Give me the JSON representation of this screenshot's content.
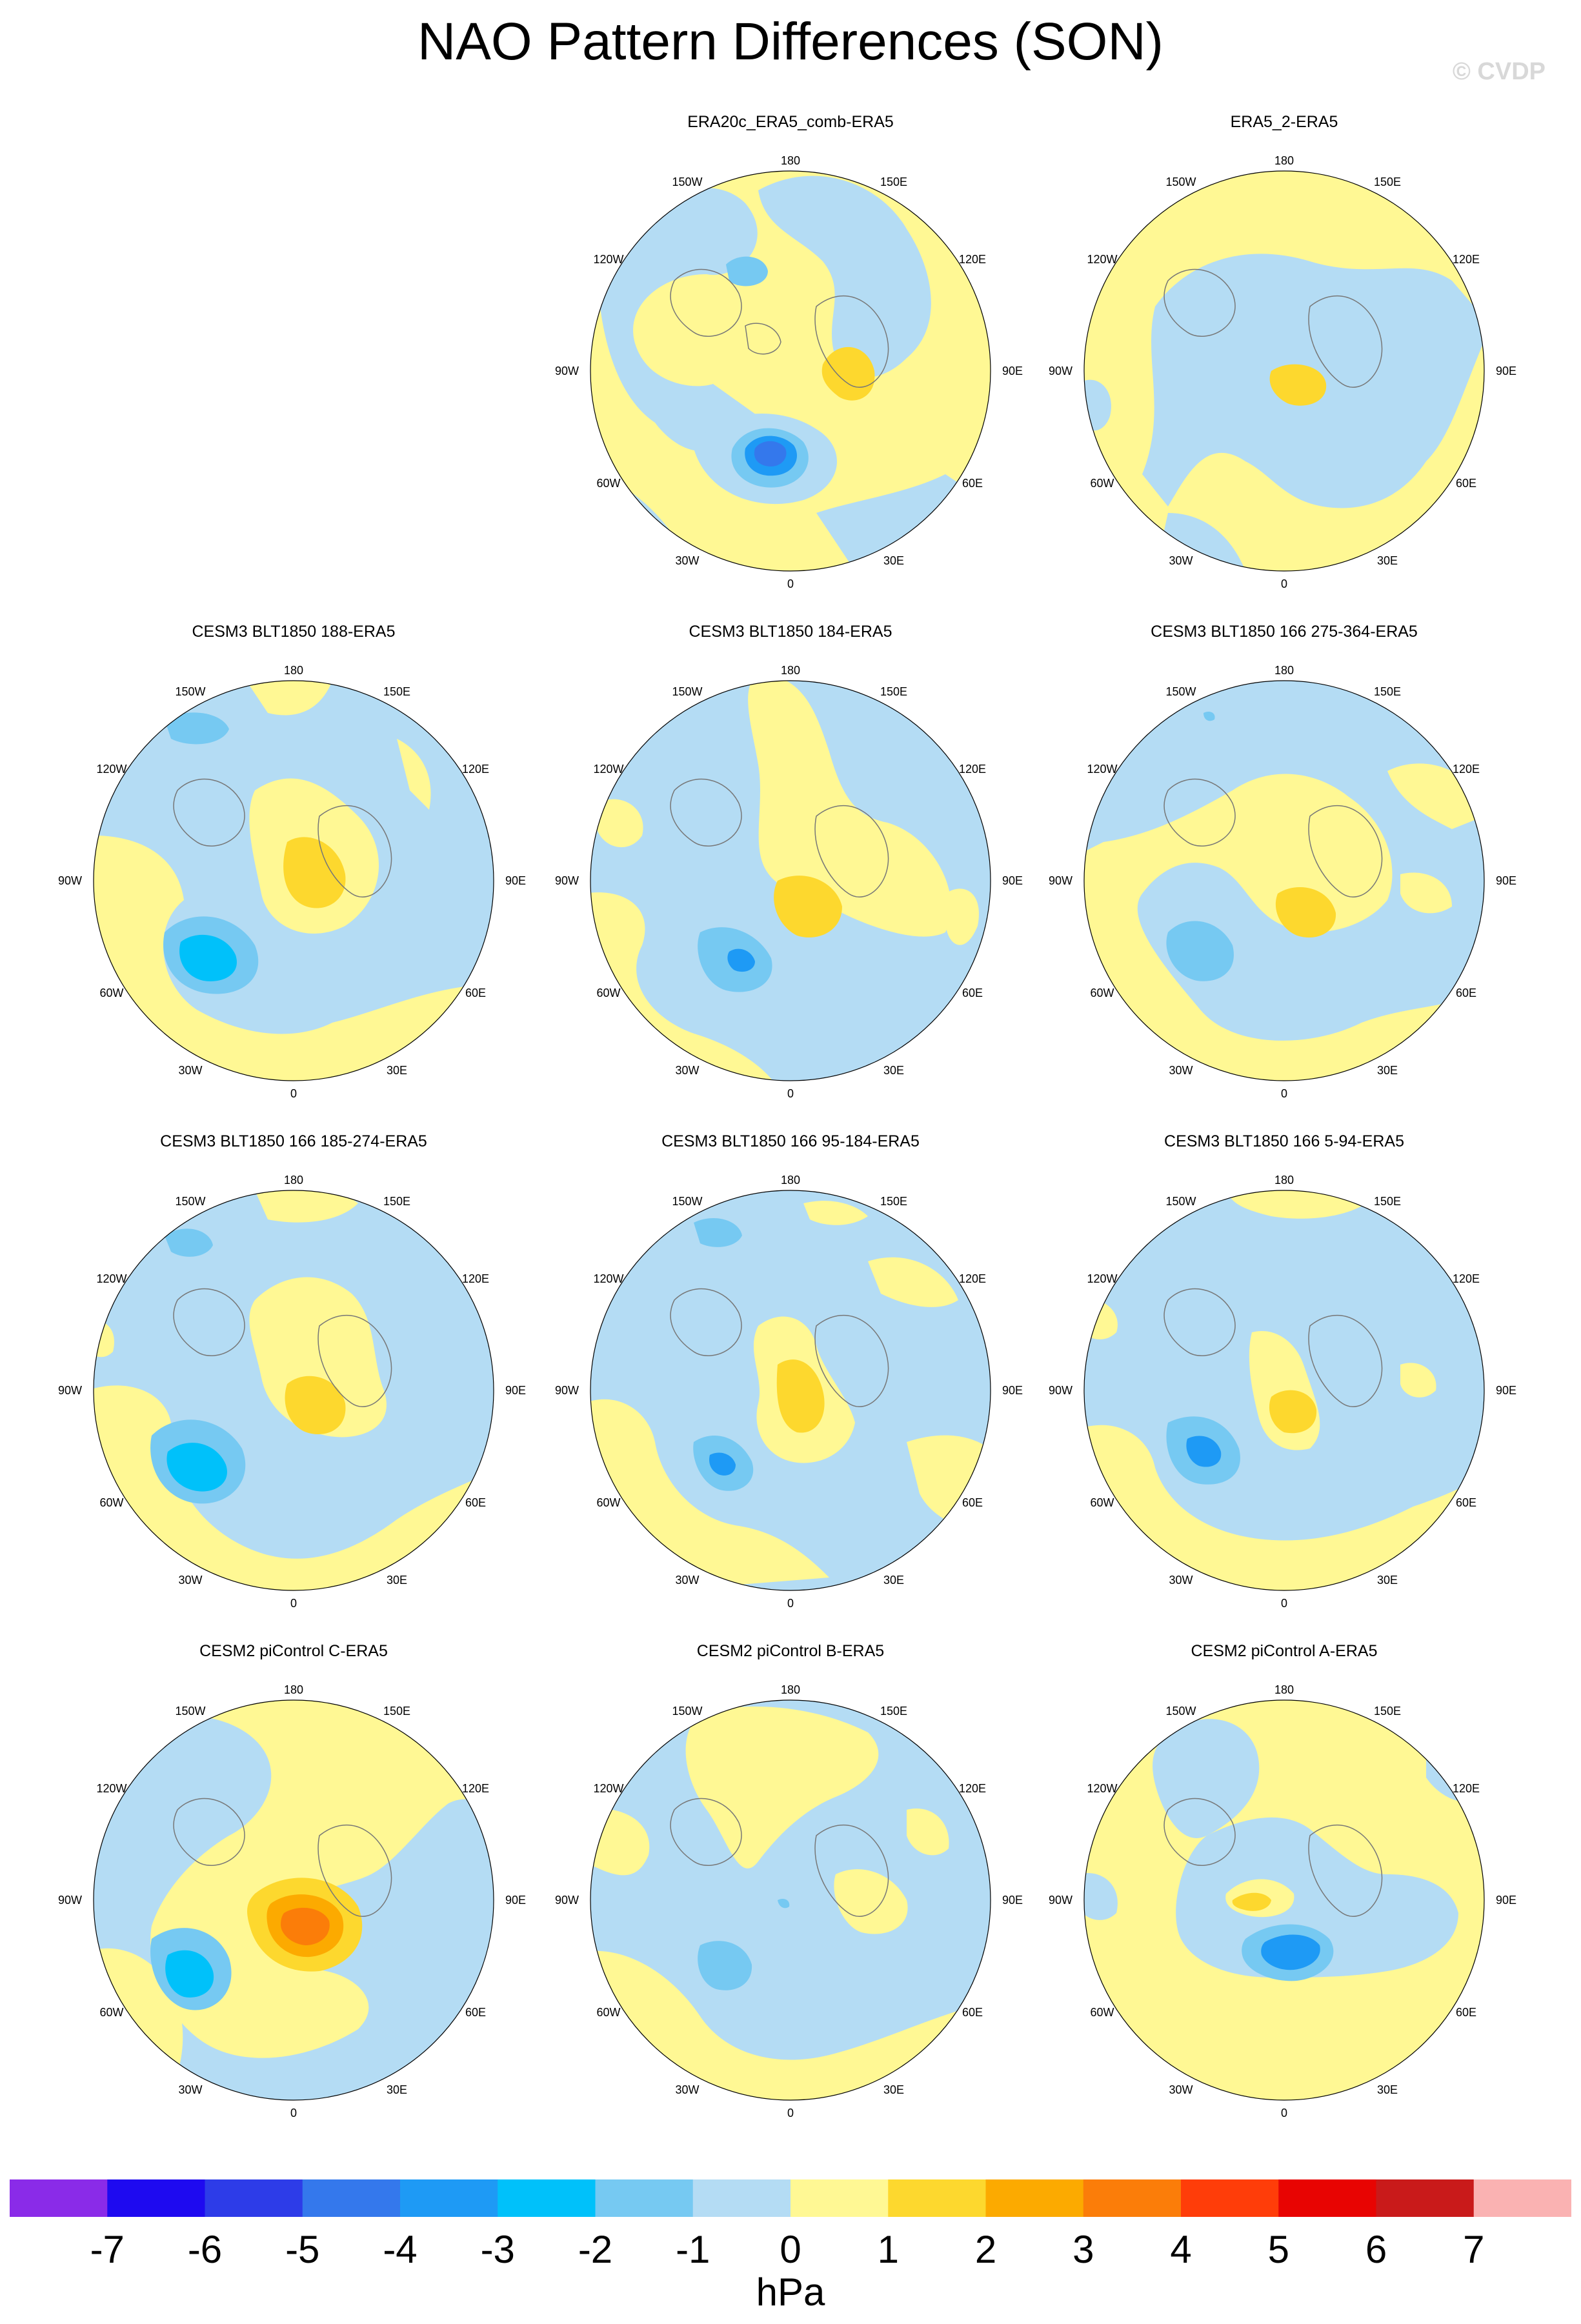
{
  "title": "NAO Pattern Differences (SON)",
  "copyright": "© CVDP",
  "unit": "hPa",
  "colors": {
    "background_negative": "#b4dcf4",
    "background_positive": "#fff894",
    "ocean_line": "#777777"
  },
  "colorbar": {
    "colors": [
      "#8a2be8",
      "#1e0af0",
      "#2d3ce8",
      "#3478ec",
      "#1e9af5",
      "#00c1fa",
      "#76c9f2",
      "#b4dcf4",
      "#fff894",
      "#fdd82e",
      "#fcaa00",
      "#fb7d09",
      "#ff3d09",
      "#e80402",
      "#c91a1a",
      "#fab2b2"
    ],
    "labels": [
      "-7",
      "-6",
      "-5",
      "-4",
      "-3",
      "-2",
      "-1",
      "0",
      "1",
      "2",
      "3",
      "4",
      "5",
      "6",
      "7"
    ]
  },
  "lon_labels": {
    "l180": "180",
    "l150w": "150W",
    "l150e": "150E",
    "l120w": "120W",
    "l120e": "120E",
    "l90w": "90W",
    "l90e": "90E",
    "l60w": "60W",
    "l60e": "60E",
    "l30w": "30W",
    "l30e": "30E",
    "l0": "0"
  },
  "panels": [
    {
      "title": "ERA20c_ERA5_comb-ERA5",
      "pattern": "p1"
    },
    {
      "title": "ERA5_2-ERA5",
      "pattern": "p2"
    },
    {
      "title": "CESM3 BLT1850 188-ERA5",
      "pattern": "p3"
    },
    {
      "title": "CESM3 BLT1850 184-ERA5",
      "pattern": "p4"
    },
    {
      "title": "CESM3 BLT1850 166 275-364-ERA5",
      "pattern": "p5"
    },
    {
      "title": "CESM3 BLT1850 166 185-274-ERA5",
      "pattern": "p6"
    },
    {
      "title": "CESM3 BLT1850 166 95-184-ERA5",
      "pattern": "p7"
    },
    {
      "title": "CESM3 BLT1850 166 5-94-ERA5",
      "pattern": "p8"
    },
    {
      "title": "CESM2 piControl C-ERA5",
      "pattern": "p9"
    },
    {
      "title": "CESM2 piControl B-ERA5",
      "pattern": "p10"
    },
    {
      "title": "CESM2 piControl A-ERA5",
      "pattern": "p11"
    }
  ]
}
